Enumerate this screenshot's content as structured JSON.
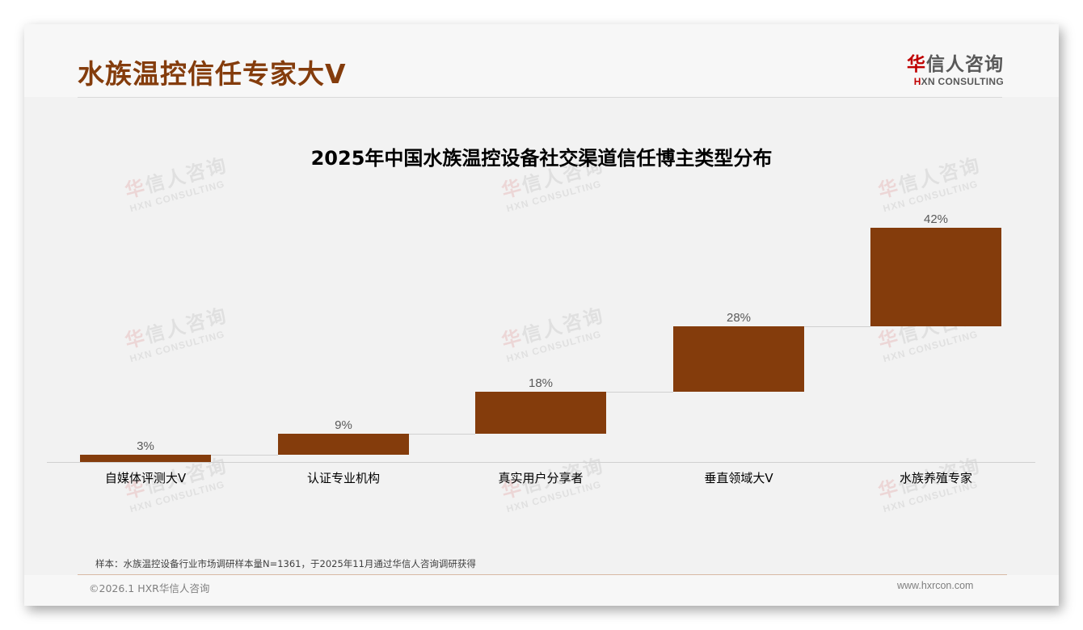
{
  "page": {
    "title": "水族温控信任专家大V",
    "logo_cn_hua": "华",
    "logo_cn_rest": "信人咨询",
    "logo_en_h": "H",
    "logo_en_rest": "XN CONSULTING"
  },
  "watermark": {
    "cn_hua": "华",
    "cn_rest": "信人咨询",
    "en": "HXN CONSULTING"
  },
  "colors": {
    "accent": "#843c0c",
    "bar": "#843c0c",
    "logo_red": "#c00000",
    "background": "#f2f2f2"
  },
  "chart_data": {
    "type": "bar",
    "subtype": "waterfall",
    "title": "2025年中国水族温控设备社交渠道信任博主类型分布",
    "categories": [
      "自媒体评测大V",
      "认证专业机构",
      "真实用户分享者",
      "垂直领域大V",
      "水族养殖专家"
    ],
    "values": [
      3,
      9,
      18,
      28,
      42
    ],
    "value_labels": [
      "3%",
      "9%",
      "18%",
      "28%",
      "42%"
    ],
    "cumulative_start": [
      0,
      3,
      12,
      30,
      58
    ],
    "cumulative_end": [
      3,
      12,
      30,
      58,
      100
    ],
    "unit": "%",
    "xlabel": "",
    "ylabel": "",
    "ylim": [
      0,
      100
    ],
    "grid": false,
    "legend": "none"
  },
  "footer": {
    "note": "样本：水族温控设备行业市场调研样本量N=1361，于2025年11月通过华信人咨询调研获得",
    "copyright": "©2026.1 HXR华信人咨询",
    "website": "www.hxrcon.com"
  }
}
